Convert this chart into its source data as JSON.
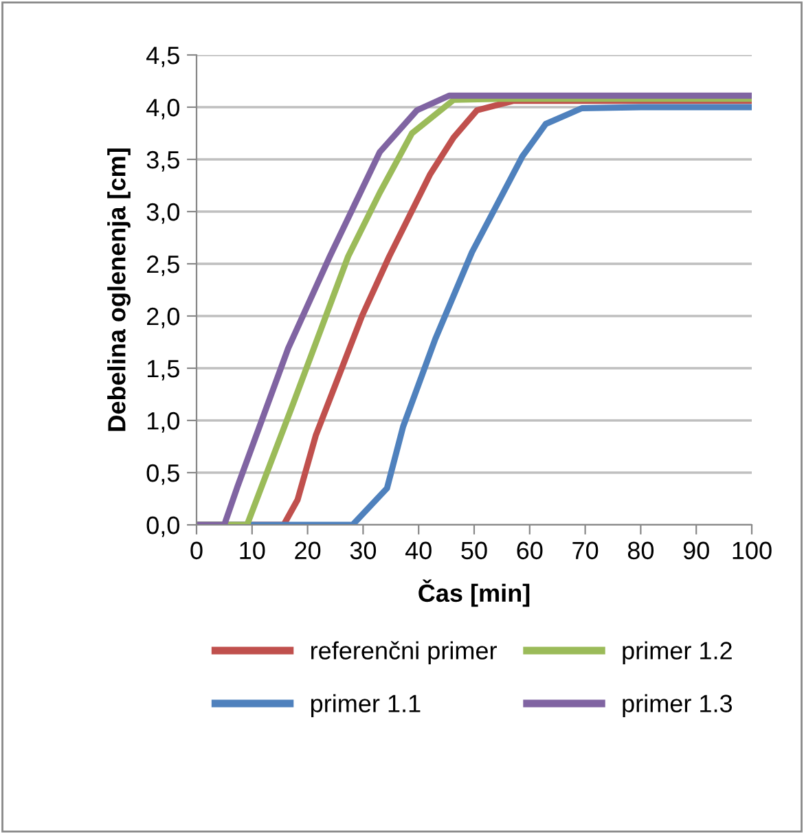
{
  "chart_data": {
    "type": "line",
    "xlabel": "Čas [min]",
    "ylabel": "Debelina oglenenja [cm]",
    "xlim": [
      0,
      100
    ],
    "xticks": [
      0,
      10,
      20,
      30,
      40,
      50,
      60,
      70,
      80,
      90,
      100
    ],
    "ylim": [
      0,
      4.5
    ],
    "yticks": [
      {
        "value": 0,
        "label": "0,0"
      },
      {
        "value": 0.5,
        "label": "0,5"
      },
      {
        "value": 1,
        "label": "1,0"
      },
      {
        "value": 1.5,
        "label": "1,5"
      },
      {
        "value": 2,
        "label": "2,0"
      },
      {
        "value": 2.5,
        "label": "2,5"
      },
      {
        "value": 3,
        "label": "3,0"
      },
      {
        "value": 3.5,
        "label": "3,5"
      },
      {
        "value": 4,
        "label": "4,0"
      },
      {
        "value": 4.5,
        "label": "4,5"
      }
    ],
    "grid": "y",
    "legend": "bottom",
    "marker": "none",
    "line_style": "solid",
    "series": [
      {
        "name": "referenčni primer",
        "color": "#c0504d",
        "x": [
          0,
          15.7,
          18.2,
          21.5,
          29.8,
          34.7,
          42.1,
          46.3,
          50.5,
          57,
          100
        ],
        "values": [
          0,
          0,
          0.24,
          0.86,
          2.0,
          2.57,
          3.36,
          3.71,
          3.97,
          4.06,
          4.06
        ]
      },
      {
        "name": "primer 1.1",
        "color": "#4f81bd",
        "x": [
          0,
          28.1,
          34.3,
          37.2,
          43,
          49.6,
          58.7,
          62.9,
          69.4,
          80,
          100
        ],
        "values": [
          0,
          0,
          0.35,
          0.94,
          1.78,
          2.61,
          3.53,
          3.84,
          3.99,
          4.0,
          4.0
        ]
      },
      {
        "name": "primer 1.2",
        "color": "#9bbb59",
        "x": [
          0,
          9.1,
          17.4,
          27.3,
          33,
          38.8,
          46.3,
          55,
          100
        ],
        "values": [
          0,
          0,
          1.16,
          2.57,
          3.18,
          3.75,
          4.07,
          4.08,
          4.08
        ]
      },
      {
        "name": "primer 1.3",
        "color": "#8064a2",
        "x": [
          0,
          5,
          7.4,
          16.5,
          24,
          33,
          39.7,
          45.5,
          100
        ],
        "values": [
          0,
          0,
          0.37,
          1.69,
          2.57,
          3.57,
          3.97,
          4.11,
          4.11
        ]
      }
    ]
  }
}
